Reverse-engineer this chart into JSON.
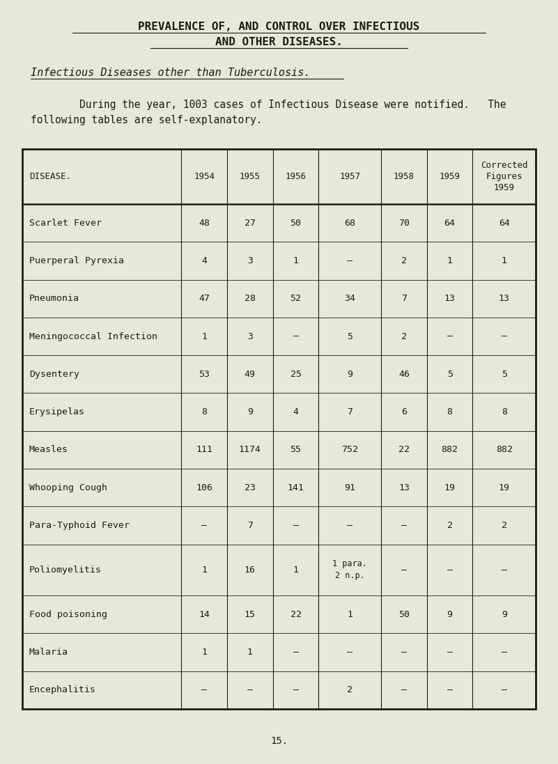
{
  "title_line1": "PREVALENCE OF, AND CONTROL OVER INFECTIOUS",
  "title_line2": "AND OTHER DISEASES.",
  "subtitle": "Infectious Diseases other than Tuberculosis.",
  "para_line1": "        During the year, 1003 cases of Infectious Disease were notified.   The",
  "para_line2": "following tables are self-explanatory.",
  "bg_color": "#e8e8d8",
  "text_color": "#1a1a1a",
  "columns": [
    "DISEASE.",
    "1954",
    "1955",
    "1956",
    "1957",
    "1958",
    "1959",
    "Corrected\nFigures\n1959"
  ],
  "rows": [
    [
      "Scarlet Fever",
      "48",
      "27",
      "50",
      "68",
      "70",
      "64",
      "64"
    ],
    [
      "Puerperal Pyrexia",
      "4",
      "3",
      "1",
      "–",
      "2",
      "1",
      "1"
    ],
    [
      "Pneumonia",
      "47",
      "28",
      "52",
      "34",
      "7",
      "13",
      "13"
    ],
    [
      "Meningococcal Infection",
      "1",
      "3",
      "–",
      "5",
      "2",
      "–",
      "–"
    ],
    [
      "Dysentery",
      "53",
      "49",
      "25",
      "9",
      "46",
      "5",
      "5"
    ],
    [
      "Erysipelas",
      "8",
      "9",
      "4",
      "7",
      "6",
      "8",
      "8"
    ],
    [
      "Measles",
      "111",
      "1174",
      "55",
      "752",
      "22",
      "882",
      "882"
    ],
    [
      "Whooping Cough",
      "106",
      "23",
      "141",
      "91",
      "13",
      "19",
      "19"
    ],
    [
      "Para-Typhoid Fever",
      "–",
      "7",
      "–",
      "–",
      "–",
      "2",
      "2"
    ],
    [
      "Poliomyelitis",
      "1",
      "16",
      "1",
      "1 para.\n2 n.p.",
      "–",
      "–",
      "–"
    ],
    [
      "Food poisoning",
      "14",
      "15",
      "22",
      "1",
      "50",
      "9",
      "9"
    ],
    [
      "Malaria",
      "1",
      "1",
      "–",
      "–",
      "–",
      "–",
      "–"
    ],
    [
      "Encephalitis",
      "–",
      "–",
      "–",
      "2",
      "–",
      "–",
      "–"
    ]
  ],
  "footer": "15.",
  "col_props": [
    0.285,
    0.082,
    0.082,
    0.082,
    0.112,
    0.082,
    0.082,
    0.113
  ]
}
